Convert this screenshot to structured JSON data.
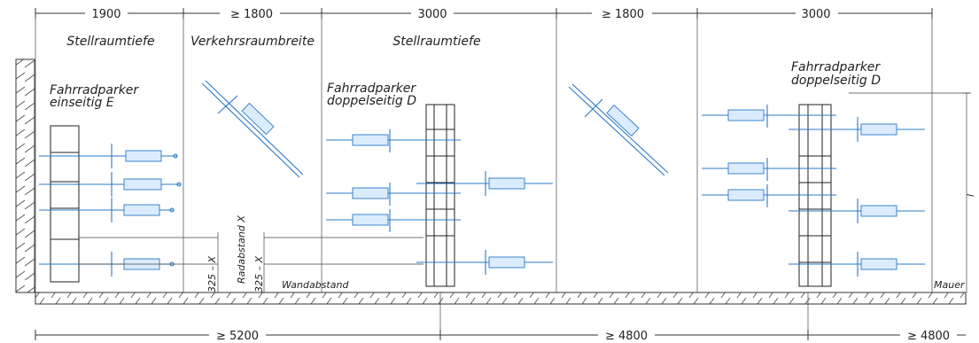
{
  "top_dimensions": {
    "d1": "1900",
    "d2": "≥ 1800",
    "d3": "3000",
    "d4": "≥ 1800",
    "d5": "3000"
  },
  "zones": {
    "stellraum_1": "Stellraumtiefe",
    "verkehrsraum": "Verkehrsraumbreite",
    "stellraum_2": "Stellraumtiefe"
  },
  "parkers": {
    "e_line1": "Fahrradparker",
    "e_line2": "einseitig E",
    "d1_line1": "Fahrradparker",
    "d1_line2": "doppelseitig D",
    "d2_line1": "Fahrradparker",
    "d2_line2": "doppelseitig D"
  },
  "labels": {
    "radabstand": "Radabstand X",
    "spacing_1": "325 – X",
    "spacing_2": "325 – X",
    "wandabstand": "Wandabstand",
    "mauer": "Mauer",
    "right_dim": "l"
  },
  "bottom_dimensions": {
    "b1": "≥ 5200",
    "b2": "≥ 4800",
    "b3": "≥ 4800"
  },
  "colors": {
    "bike": "#2a78c8",
    "line": "#333333"
  }
}
